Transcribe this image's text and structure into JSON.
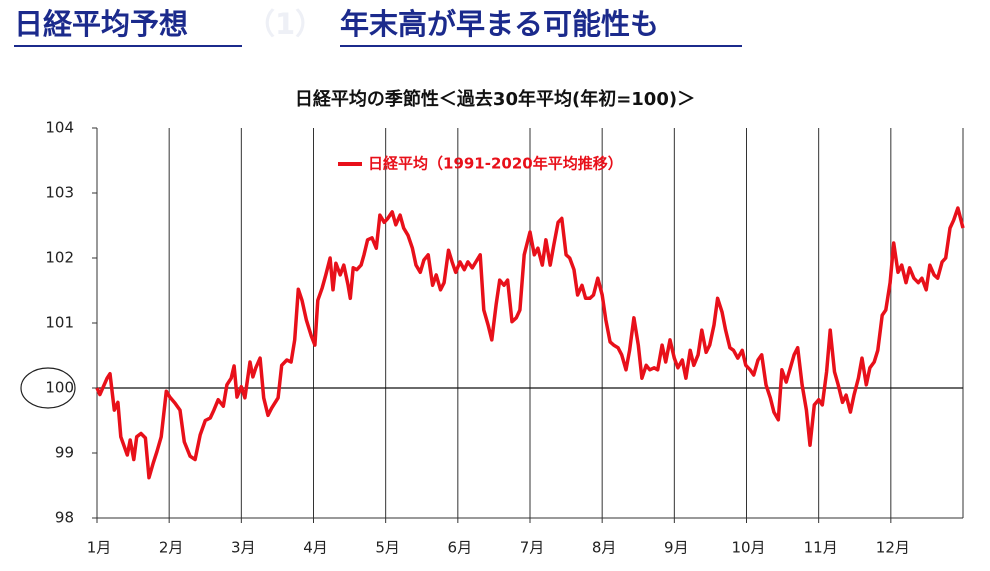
{
  "header": {
    "title_left": "日経平均予想",
    "title_number": "（1）",
    "title_right": "年末高が早まる可能性も"
  },
  "chart_data": {
    "type": "line",
    "title": "日経平均の季節性＜過去30年平均(年初=100)＞",
    "x": [
      0,
      0.04,
      0.14,
      0.18,
      0.24,
      0.29,
      0.33,
      0.42,
      0.46,
      0.51,
      0.55,
      0.61,
      0.67,
      0.72,
      0.78,
      0.83,
      0.89,
      0.96,
      1.01,
      1.08,
      1.15,
      1.21,
      1.29,
      1.36,
      1.43,
      1.5,
      1.57,
      1.62,
      1.68,
      1.75,
      1.8,
      1.86,
      1.9,
      1.94,
      2,
      2.05,
      2.12,
      2.16,
      2.2,
      2.26,
      2.31,
      2.37,
      2.42,
      2.51,
      2.56,
      2.63,
      2.69,
      2.74,
      2.79,
      2.84,
      2.9,
      2.97,
      3.02,
      3.06,
      3.12,
      3.17,
      3.23,
      3.27,
      3.31,
      3.37,
      3.42,
      3.48,
      3.51,
      3.55,
      3.6,
      3.66,
      3.7,
      3.75,
      3.81,
      3.87,
      3.92,
      3.98,
      4.03,
      4.09,
      4.14,
      4.2,
      4.25,
      4.31,
      4.37,
      4.42,
      4.48,
      4.53,
      4.59,
      4.65,
      4.7,
      4.76,
      4.81,
      4.87,
      4.92,
      4.97,
      5.03,
      5.09,
      5.14,
      5.2,
      5.25,
      5.31,
      5.36,
      5.42,
      5.47,
      5.53,
      5.58,
      5.64,
      5.69,
      5.75,
      5.81,
      5.86,
      5.92,
      6,
      6.06,
      6.11,
      6.17,
      6.22,
      6.28,
      6.33,
      6.39,
      6.44,
      6.5,
      6.55,
      6.61,
      6.66,
      6.72,
      6.77,
      6.83,
      6.88,
      6.94,
      7,
      7.05,
      7.11,
      7.16,
      7.22,
      7.27,
      7.33,
      7.38,
      7.44,
      7.5,
      7.55,
      7.61,
      7.66,
      7.72,
      7.77,
      7.83,
      7.88,
      7.94,
      8,
      8.05,
      8.11,
      8.16,
      8.22,
      8.27,
      8.33,
      8.38,
      8.44,
      8.49,
      8.55,
      8.6,
      8.66,
      8.71,
      8.77,
      8.82,
      8.88,
      8.94,
      8.99,
      9.05,
      9.1,
      9.16,
      9.21,
      9.27,
      9.33,
      9.38,
      9.44,
      9.49,
      9.55,
      9.6,
      9.66,
      9.71,
      9.77,
      9.83,
      9.88,
      9.94,
      10,
      10.05,
      10.11,
      10.16,
      10.22,
      10.27,
      10.33,
      10.38,
      10.44,
      10.49,
      10.55,
      10.6,
      10.66,
      10.71,
      10.77,
      10.82,
      10.88,
      10.93,
      10.99,
      11.04,
      11.1,
      11.15,
      11.21,
      11.26,
      11.32,
      11.38,
      11.43,
      11.49,
      11.54,
      11.6,
      11.65,
      11.71,
      11.76,
      11.82,
      11.87,
      11.93,
      12
    ],
    "series": [
      {
        "name": "日経平均（1991-2020年平均推移）",
        "color": "#e8101a",
        "values": [
          100,
          99.9,
          100.15,
          100.22,
          99.66,
          99.78,
          99.25,
          98.97,
          99.2,
          98.9,
          99.25,
          99.3,
          99.23,
          98.62,
          98.85,
          99.02,
          99.25,
          99.95,
          99.86,
          99.77,
          99.66,
          99.17,
          98.95,
          98.9,
          99.28,
          99.5,
          99.54,
          99.66,
          99.82,
          99.72,
          100.05,
          100.15,
          100.34,
          99.86,
          100.02,
          99.85,
          100.4,
          100.17,
          100.31,
          100.46,
          99.85,
          99.58,
          99.69,
          99.85,
          100.35,
          100.43,
          100.4,
          100.74,
          101.52,
          101.35,
          101.05,
          100.8,
          100.66,
          101.35,
          101.54,
          101.74,
          102,
          101.51,
          101.92,
          101.74,
          101.89,
          101.58,
          101.38,
          101.85,
          101.82,
          101.89,
          102.05,
          102.28,
          102.31,
          102.15,
          102.66,
          102.55,
          102.61,
          102.71,
          102.51,
          102.66,
          102.46,
          102.35,
          102.15,
          101.89,
          101.78,
          101.97,
          102.05,
          101.58,
          101.74,
          101.51,
          101.62,
          102.12,
          101.94,
          101.78,
          101.94,
          101.82,
          101.94,
          101.85,
          101.94,
          102.05,
          101.2,
          100.97,
          100.74,
          101.28,
          101.66,
          101.58,
          101.66,
          101.02,
          101.08,
          101.2,
          102.05,
          102.4,
          102.05,
          102.15,
          101.89,
          102.28,
          101.89,
          102.2,
          102.55,
          102.61,
          102.05,
          102,
          101.82,
          101.43,
          101.58,
          101.38,
          101.38,
          101.43,
          101.69,
          101.43,
          101.05,
          100.71,
          100.66,
          100.62,
          100.51,
          100.28,
          100.58,
          101.08,
          100.66,
          100.15,
          100.35,
          100.28,
          100.31,
          100.28,
          100.66,
          100.4,
          100.74,
          100.46,
          100.31,
          100.43,
          100.15,
          100.58,
          100.35,
          100.51,
          100.89,
          100.55,
          100.66,
          100.97,
          101.38,
          101.17,
          100.89,
          100.62,
          100.58,
          100.46,
          100.58,
          100.35,
          100.28,
          100.2,
          100.43,
          100.51,
          100.05,
          99.85,
          99.63,
          99.51,
          100.28,
          100.09,
          100.28,
          100.51,
          100.62,
          100.05,
          99.66,
          99.12,
          99.74,
          99.82,
          99.74,
          100.25,
          100.89,
          100.25,
          100.05,
          99.78,
          99.89,
          99.63,
          99.89,
          100.15,
          100.46,
          100.05,
          100.31,
          100.4,
          100.58,
          101.12,
          101.2,
          101.62,
          102.23,
          101.78,
          101.89,
          101.62,
          101.85,
          101.69,
          101.62,
          101.69,
          101.51,
          101.89,
          101.74,
          101.69,
          101.94,
          102,
          102.46,
          102.58,
          102.77,
          102.46
        ]
      }
    ],
    "xlim": [
      0,
      12
    ],
    "xticks": [
      {
        "value": 0,
        "label": "1月"
      },
      {
        "value": 1,
        "label": "2月"
      },
      {
        "value": 2,
        "label": "3月"
      },
      {
        "value": 3,
        "label": "4月"
      },
      {
        "value": 4,
        "label": "5月"
      },
      {
        "value": 5,
        "label": "6月"
      },
      {
        "value": 6,
        "label": "7月"
      },
      {
        "value": 7,
        "label": "8月"
      },
      {
        "value": 8,
        "label": "9月"
      },
      {
        "value": 9,
        "label": "10月"
      },
      {
        "value": 10,
        "label": "11月"
      },
      {
        "value": 11,
        "label": "12月"
      }
    ],
    "ylim": [
      98,
      104
    ],
    "yticks": [
      98,
      99,
      100,
      101,
      102,
      103,
      104
    ],
    "hline": 100,
    "grid": true
  }
}
